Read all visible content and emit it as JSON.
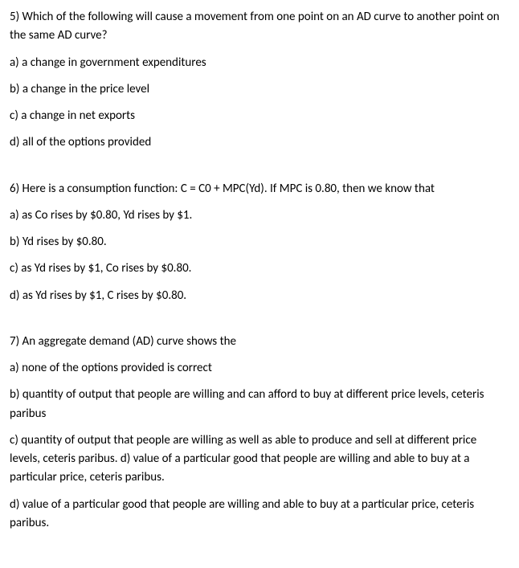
{
  "questions": [
    {
      "stem": "5) Which of the following will cause a movement from one point on an AD curve to another point on the same AD curve?",
      "options": [
        "a) a change in government expenditures",
        "b) a change in the price level",
        "c) a change in net exports",
        "d) all of the options provided"
      ]
    },
    {
      "stem": "6) Here is a consumption function: C = C0 + MPC(Yd). If MPC is 0.80, then we know that",
      "options": [
        "a) as Co rises by $0.80, Yd rises by $1.",
        "b) Yd rises by $0.80.",
        "c) as Yd rises by $1, Co rises by $0.80.",
        "d) as Yd rises by $1, C rises by $0.80."
      ]
    },
    {
      "stem": "7) An aggregate demand (AD) curve shows the",
      "options": [
        "a) none of the options provided is correct",
        "b) quantity of output that people are willing and can afford to buy at different price levels, ceteris paribus",
        "c) quantity of output that people are willing as well as able to produce and sell at different price levels, ceteris paribus. d) value of a particular good that people are willing and able to buy at a particular price, ceteris paribus.",
        "d) value of a particular good that people are willing and able to buy at a particular price, ceteris paribus."
      ]
    }
  ]
}
